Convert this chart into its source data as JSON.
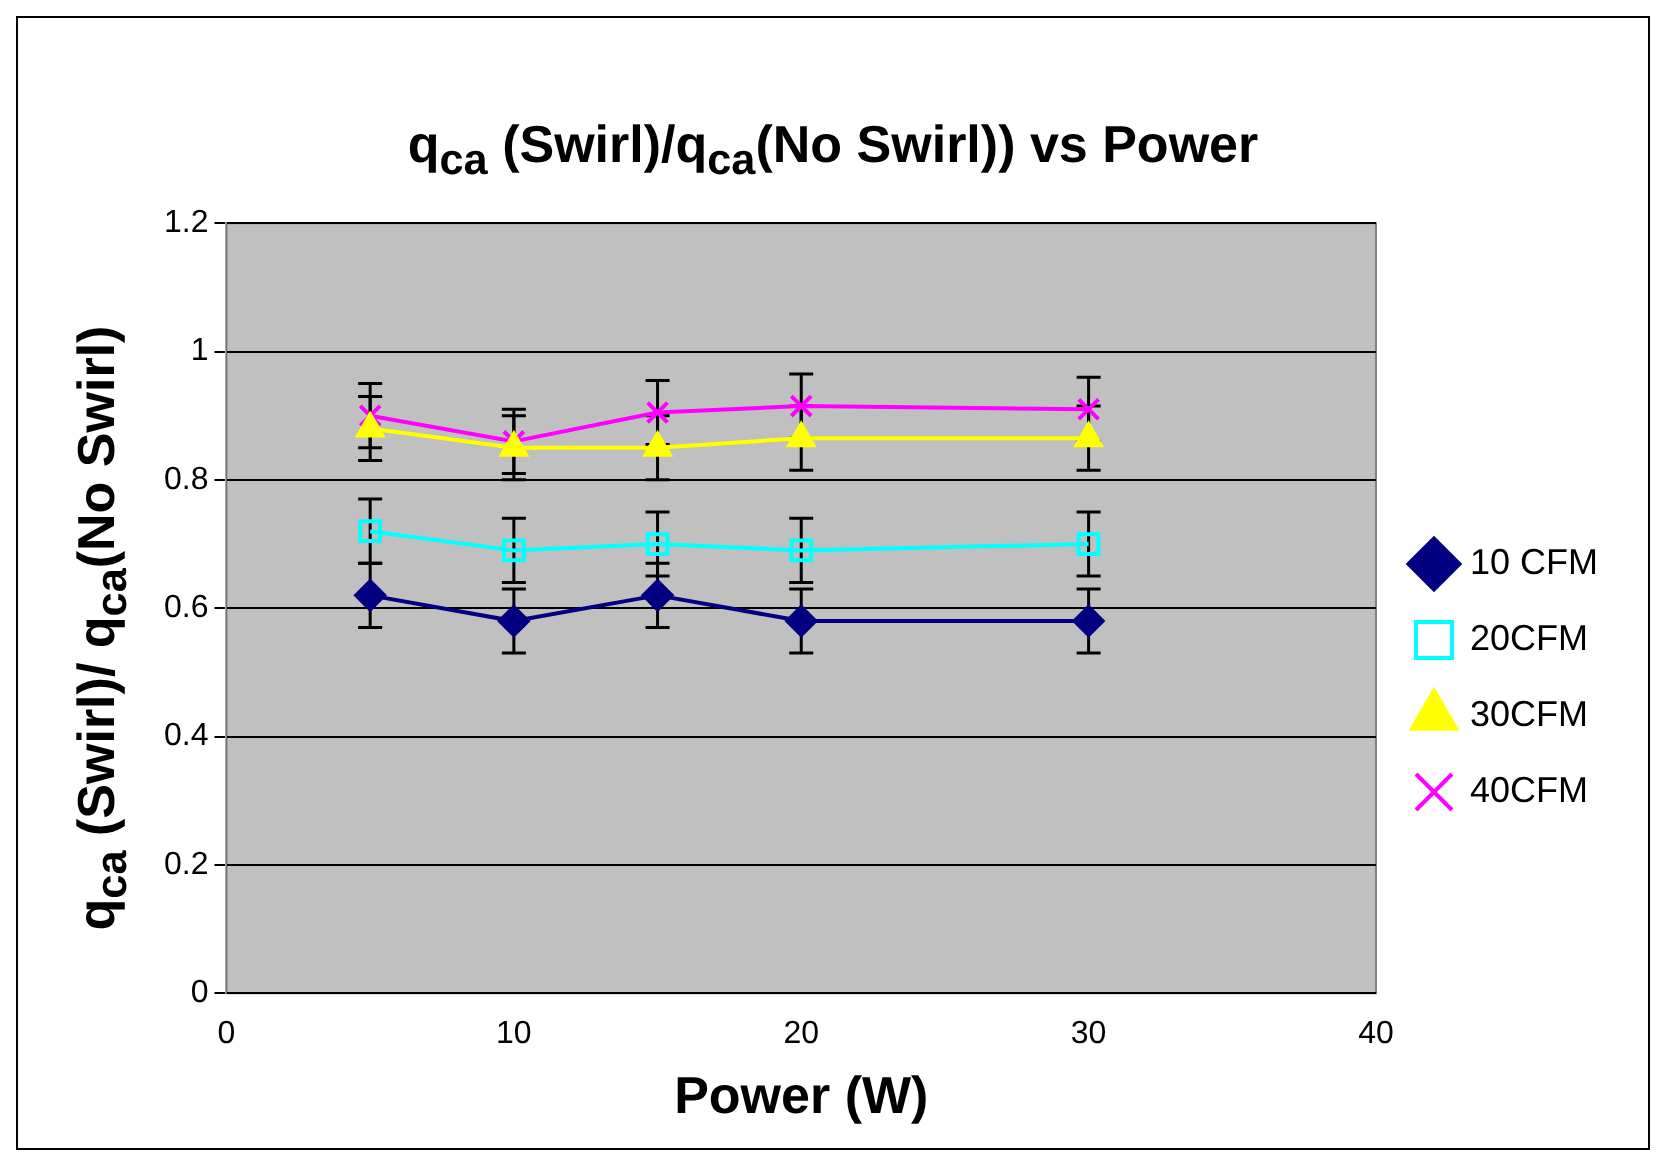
{
  "chart_data": {
    "type": "line",
    "title": "q$_{ca}$ (Swirl)/q$_{ca}$(No Swirl)) vs Power",
    "xlabel": "Power (W)",
    "ylabel": "q$_{ca}$ (Swirl)/ q$_{ca}$(No Swirl)",
    "x": [
      5,
      10,
      15,
      20,
      30
    ],
    "series": [
      {
        "name": "10 CFM",
        "color": "#000080",
        "marker": "diamond",
        "values": [
          0.62,
          0.58,
          0.62,
          0.58,
          0.58
        ],
        "errors": [
          0.05,
          0.05,
          0.05,
          0.05,
          0.05
        ]
      },
      {
        "name": "20CFM",
        "color": "#00ffff",
        "marker": "square",
        "values": [
          0.72,
          0.69,
          0.7,
          0.69,
          0.7
        ],
        "errors": [
          0.05,
          0.05,
          0.05,
          0.05,
          0.05
        ]
      },
      {
        "name": "30CFM",
        "color": "#ffff00",
        "marker": "triangle",
        "values": [
          0.88,
          0.85,
          0.85,
          0.865,
          0.865
        ],
        "errors": [
          0.05,
          0.05,
          0.05,
          0.05,
          0.05
        ]
      },
      {
        "name": "40CFM",
        "color": "#ff00ff",
        "marker": "cross",
        "values": [
          0.9,
          0.86,
          0.905,
          0.915,
          0.91
        ],
        "errors": [
          0.05,
          0.05,
          0.05,
          0.05,
          0.05
        ]
      }
    ],
    "xlim": [
      0,
      40
    ],
    "xticks": [
      0,
      10,
      20,
      30,
      40
    ],
    "ylim": [
      0,
      1.2
    ],
    "yticks": [
      0,
      0.2,
      0.4,
      0.6,
      0.8,
      {
        "value": 1,
        "label": "1"
      },
      1.2
    ],
    "grid": "y",
    "legend": "right"
  }
}
